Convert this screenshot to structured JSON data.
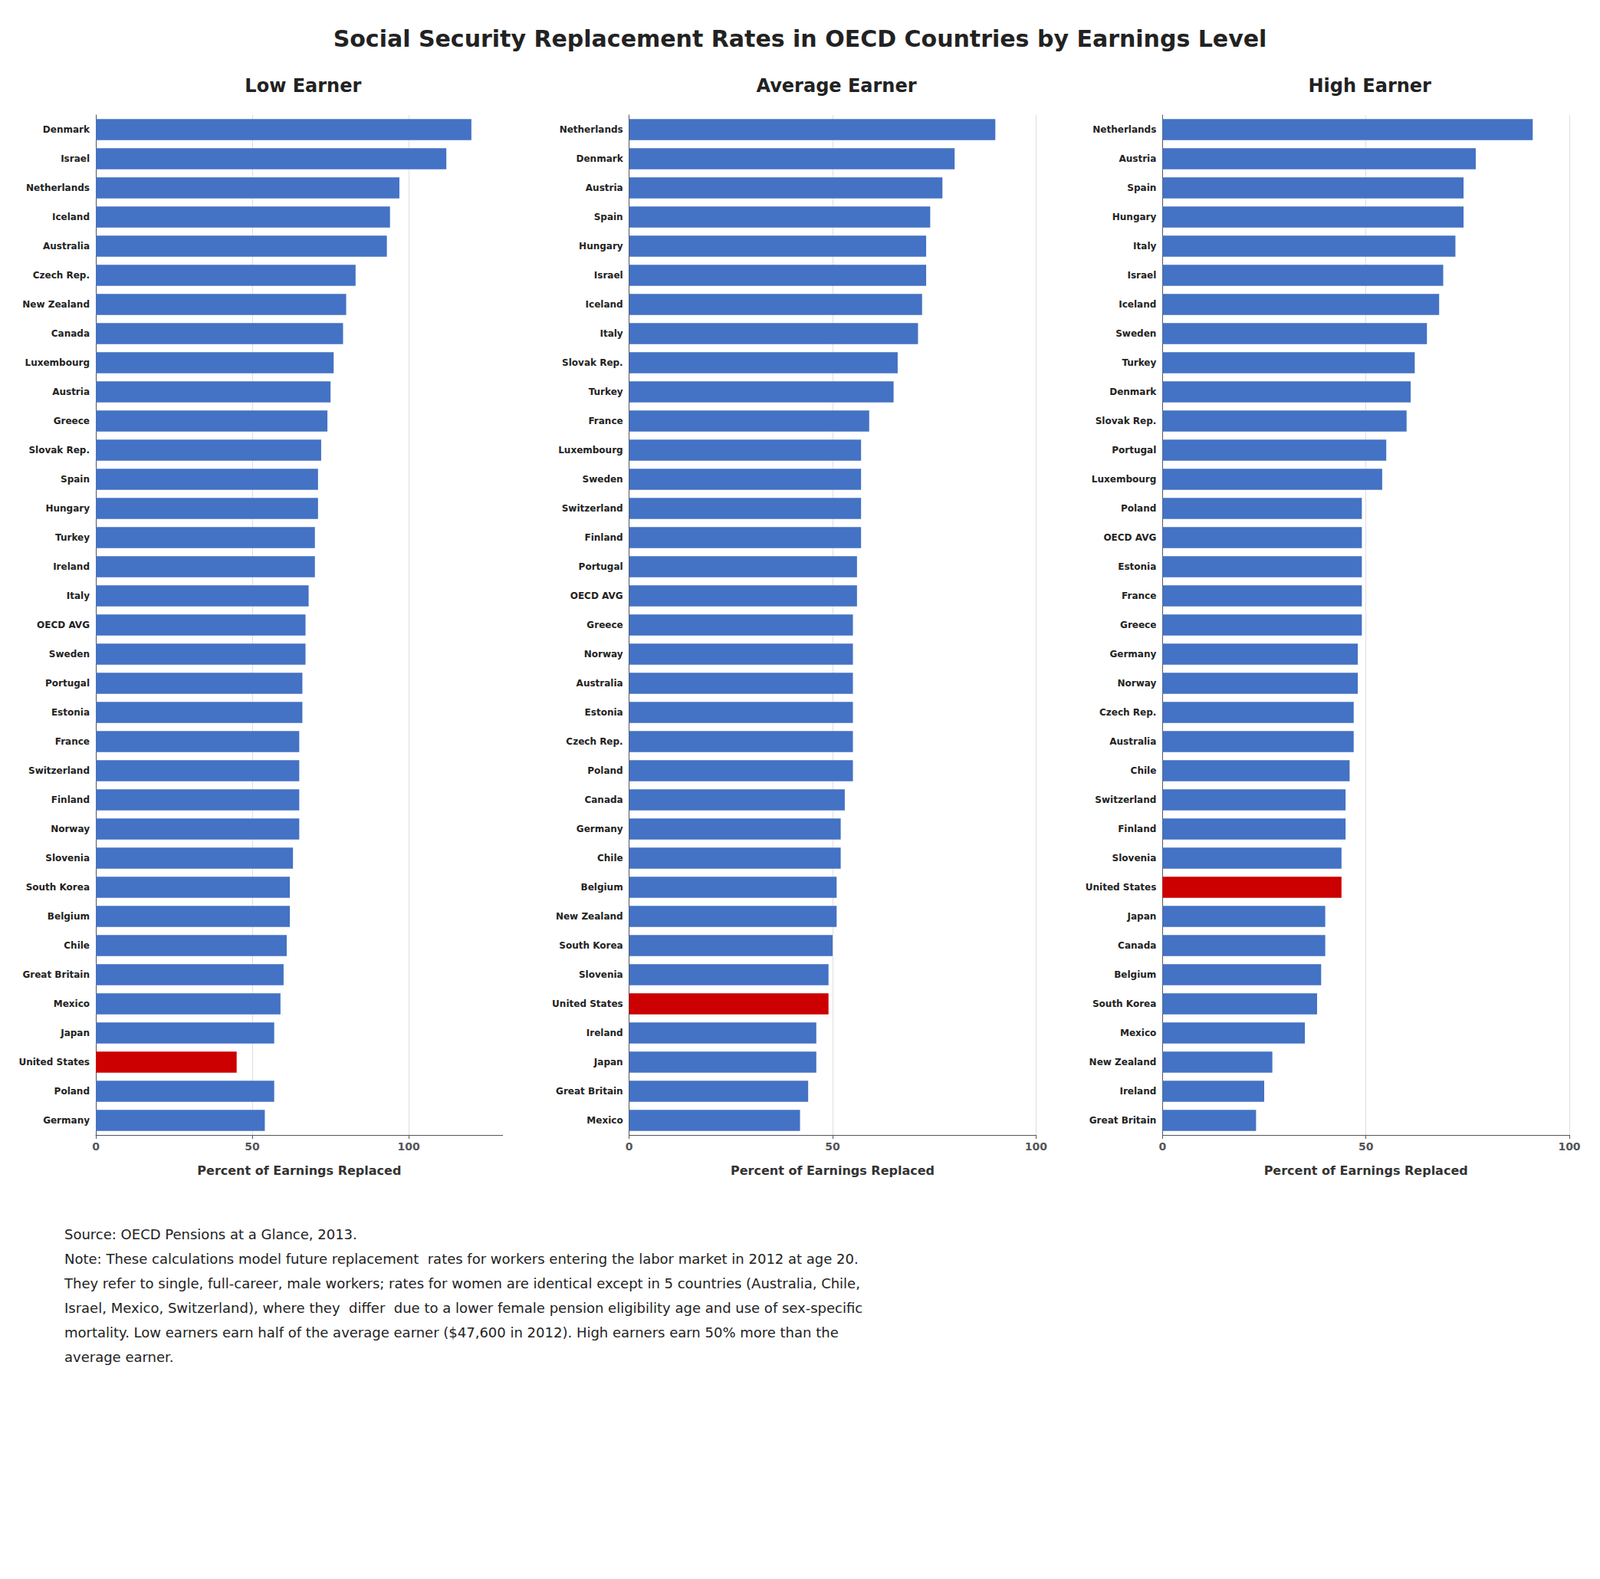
{
  "title": "Social Security Replacement Rates in OECD Countries by Earnings Level",
  "annotations": [
    "Source: OECD Pensions at a Glance, 2013.",
    "Note: These calculations model future replacement  rates for workers entering the labor market in 2012 at age 20.",
    "They refer to single, full-career, male workers; rates for women are identical except in 5 countries (Australia, Chile,",
    "Israel, Mexico, Switzerland), where they  differ  due to a lower female pension eligibility age and use of sex-specific",
    "mortality. Low earners earn half of the average earner ($47,600 in 2012). High earners earn 50% more than the",
    "average earner."
  ],
  "chart_data": [
    {
      "type": "bar",
      "orientation": "horizontal",
      "title": "Low Earner",
      "categories": [
        "Denmark",
        "Israel",
        "Netherlands",
        "Iceland",
        "Australia",
        "Czech Rep.",
        "New Zealand",
        "Canada",
        "Luxembourg",
        "Austria",
        "Greece",
        "Slovak Rep.",
        "Spain",
        "Hungary",
        "Turkey",
        "Ireland",
        "Italy",
        "OECD AVG",
        "Sweden",
        "Portugal",
        "Estonia",
        "France",
        "Switzerland",
        "Finland",
        "Norway",
        "Slovenia",
        "South Korea",
        "Belgium",
        "Chile",
        "Great Britain",
        "Mexico",
        "Japan",
        "United States",
        "Poland",
        "Germany"
      ],
      "values": [
        120,
        112,
        97,
        94,
        93,
        83,
        80,
        79,
        76,
        75,
        74,
        72,
        71,
        71,
        70,
        70,
        68,
        67,
        67,
        66,
        66,
        65,
        65,
        65,
        65,
        63,
        62,
        62,
        61,
        60,
        59,
        57,
        45,
        57,
        54
      ],
      "colors": [
        "#4472C4",
        "#4472C4",
        "#4472C4",
        "#4472C4",
        "#4472C4",
        "#4472C4",
        "#4472C4",
        "#4472C4",
        "#4472C4",
        "#4472C4",
        "#4472C4",
        "#4472C4",
        "#4472C4",
        "#4472C4",
        "#4472C4",
        "#4472C4",
        "#4472C4",
        "#4472C4",
        "#4472C4",
        "#4472C4",
        "#4472C4",
        "#4472C4",
        "#4472C4",
        "#4472C4",
        "#4472C4",
        "#4472C4",
        "#4472C4",
        "#4472C4",
        "#4472C4",
        "#4472C4",
        "#4472C4",
        "#4472C4",
        "#CC0000",
        "#4472C4",
        "#4472C4"
      ],
      "xlabel": "Percent of Earnings Replaced",
      "xlim": [
        0,
        130
      ],
      "xticks": [
        0,
        50,
        100
      ],
      "grid": true
    },
    {
      "type": "bar",
      "orientation": "horizontal",
      "title": "Average Earner",
      "categories": [
        "Netherlands",
        "Denmark",
        "Austria",
        "Spain",
        "Hungary",
        "Israel",
        "Iceland",
        "Italy",
        "Slovak Rep.",
        "Turkey",
        "France",
        "Luxembourg",
        "Sweden",
        "Switzerland",
        "Finland",
        "Portugal",
        "OECD AVG",
        "Greece",
        "Norway",
        "Australia",
        "Estonia",
        "Czech Rep.",
        "Poland",
        "Canada",
        "Germany",
        "Chile",
        "Belgium",
        "New Zealand",
        "South Korea",
        "Slovenia",
        "United States",
        "Ireland",
        "Japan",
        "Great Britain",
        "Mexico"
      ],
      "values": [
        90,
        80,
        77,
        74,
        73,
        73,
        72,
        71,
        66,
        65,
        59,
        57,
        57,
        57,
        57,
        56,
        56,
        55,
        55,
        55,
        55,
        55,
        55,
        53,
        52,
        52,
        51,
        51,
        50,
        49,
        49,
        46,
        46,
        44,
        42
      ],
      "colors": [
        "#4472C4",
        "#4472C4",
        "#4472C4",
        "#4472C4",
        "#4472C4",
        "#4472C4",
        "#4472C4",
        "#4472C4",
        "#4472C4",
        "#4472C4",
        "#4472C4",
        "#4472C4",
        "#4472C4",
        "#4472C4",
        "#4472C4",
        "#4472C4",
        "#4472C4",
        "#4472C4",
        "#4472C4",
        "#4472C4",
        "#4472C4",
        "#4472C4",
        "#4472C4",
        "#4472C4",
        "#4472C4",
        "#4472C4",
        "#4472C4",
        "#4472C4",
        "#4472C4",
        "#4472C4",
        "#CC0000",
        "#4472C4",
        "#4472C4",
        "#4472C4",
        "#4472C4"
      ],
      "xlabel": "Percent of Earnings Replaced",
      "xlim": [
        0,
        100
      ],
      "xticks": [
        0,
        50,
        100
      ],
      "grid": true
    },
    {
      "type": "bar",
      "orientation": "horizontal",
      "title": "High Earner",
      "categories": [
        "Netherlands",
        "Austria",
        "Spain",
        "Hungary",
        "Italy",
        "Israel",
        "Iceland",
        "Sweden",
        "Turkey",
        "Denmark",
        "Slovak Rep.",
        "Portugal",
        "Luxembourg",
        "Poland",
        "OECD AVG",
        "Estonia",
        "France",
        "Greece",
        "Germany",
        "Norway",
        "Czech Rep.",
        "Australia",
        "Chile",
        "Switzerland",
        "Finland",
        "Slovenia",
        "United States",
        "Japan",
        "Canada",
        "Belgium",
        "South Korea",
        "Mexico",
        "New Zealand",
        "Ireland",
        "Great Britain"
      ],
      "values": [
        91,
        77,
        74,
        74,
        72,
        69,
        68,
        65,
        62,
        61,
        60,
        55,
        54,
        49,
        49,
        49,
        49,
        49,
        48,
        48,
        47,
        47,
        46,
        45,
        45,
        44,
        44,
        40,
        40,
        39,
        38,
        35,
        27,
        25,
        23
      ],
      "colors": [
        "#4472C4",
        "#4472C4",
        "#4472C4",
        "#4472C4",
        "#4472C4",
        "#4472C4",
        "#4472C4",
        "#4472C4",
        "#4472C4",
        "#4472C4",
        "#4472C4",
        "#4472C4",
        "#4472C4",
        "#4472C4",
        "#4472C4",
        "#4472C4",
        "#4472C4",
        "#4472C4",
        "#4472C4",
        "#4472C4",
        "#4472C4",
        "#4472C4",
        "#4472C4",
        "#4472C4",
        "#4472C4",
        "#4472C4",
        "#CC0000",
        "#4472C4",
        "#4472C4",
        "#4472C4",
        "#4472C4",
        "#4472C4",
        "#4472C4",
        "#4472C4",
        "#4472C4"
      ],
      "xlabel": "Percent of Earnings Replaced",
      "xlim": [
        0,
        100
      ],
      "xticks": [
        0,
        50,
        100
      ],
      "grid": true
    }
  ]
}
